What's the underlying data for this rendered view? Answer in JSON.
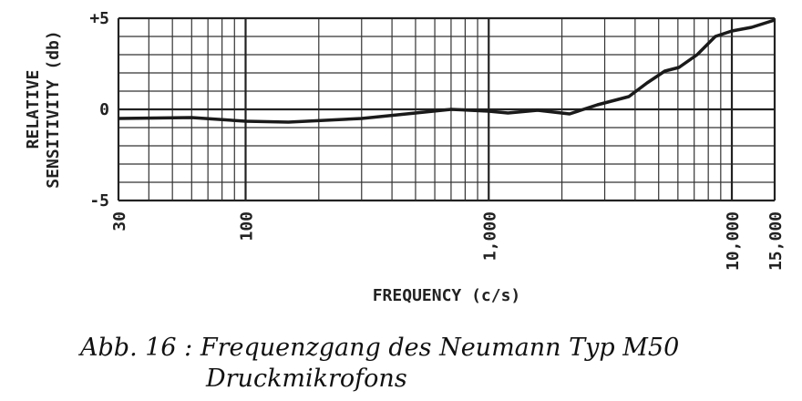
{
  "chart_data": {
    "type": "line",
    "ylabel": [
      "RELATIVE",
      "SENSITIVITY (db)"
    ],
    "xlabel": "FREQUENCY (c/s)",
    "caption": [
      "Abb. 16 : Frequenzgang des Neumann Typ M50",
      "Druckmikrofons"
    ],
    "xscale": "log",
    "xlim": [
      30,
      15000
    ],
    "ylim": [
      -5,
      5
    ],
    "xticks": [
      30,
      100,
      {
        "value": 1000,
        "label": "1,000"
      },
      {
        "value": 10000,
        "label": "10,000"
      },
      {
        "value": 15000,
        "label": "15,000"
      }
    ],
    "xticks_minor": [
      40,
      50,
      60,
      70,
      80,
      90,
      200,
      300,
      400,
      500,
      600,
      700,
      800,
      900,
      2000,
      3000,
      4000,
      5000,
      6000,
      7000,
      8000,
      9000
    ],
    "yticks": [
      {
        "value": 5,
        "label": "+5"
      },
      0,
      -5
    ],
    "yticks_minor": [
      -4,
      -3,
      -2,
      -1,
      1,
      2,
      3,
      4
    ],
    "grid": true,
    "series": [
      {
        "color": "#1a1a1a",
        "x": [
          30,
          60,
          100,
          150,
          300,
          500,
          700,
          1000,
          1200,
          1590,
          2150,
          2800,
          3770,
          4480,
          5300,
          6060,
          7200,
          8550,
          10000,
          12050,
          15000
        ],
        "values": [
          -0.5,
          -0.45,
          -0.65,
          -0.7,
          -0.5,
          -0.2,
          0,
          -0.1,
          -0.2,
          -0.05,
          -0.25,
          0.25,
          0.7,
          1.45,
          2.1,
          2.3,
          3.0,
          4.0,
          4.3,
          4.5,
          4.9
        ]
      }
    ]
  }
}
